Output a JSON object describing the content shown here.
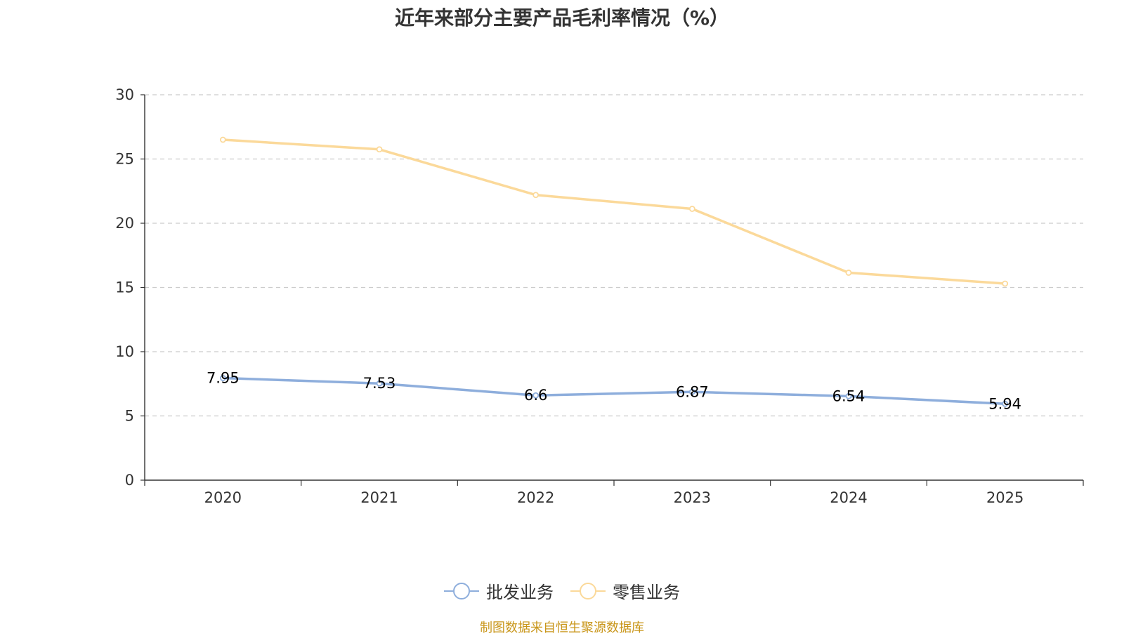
{
  "chart_data": {
    "type": "line",
    "title": "近年来部分主要产品毛利率情况（%）",
    "categories": [
      "2020",
      "2021",
      "2022",
      "2023",
      "2024",
      "2025"
    ],
    "ylim": [
      0,
      30
    ],
    "yticks": [
      0,
      5,
      10,
      15,
      20,
      25,
      30
    ],
    "grid": true,
    "legend_position": "bottom",
    "series": [
      {
        "name": "批发业务",
        "color": "#8eaedc",
        "values": [
          7.95,
          7.53,
          6.6,
          6.87,
          6.54,
          5.94
        ],
        "show_labels": true
      },
      {
        "name": "零售业务",
        "color": "#fbd99a",
        "values": [
          26.5,
          25.75,
          22.2,
          21.12,
          16.15,
          15.3
        ],
        "show_labels": false
      }
    ]
  },
  "source": "制图数据来自恒生聚源数据库"
}
